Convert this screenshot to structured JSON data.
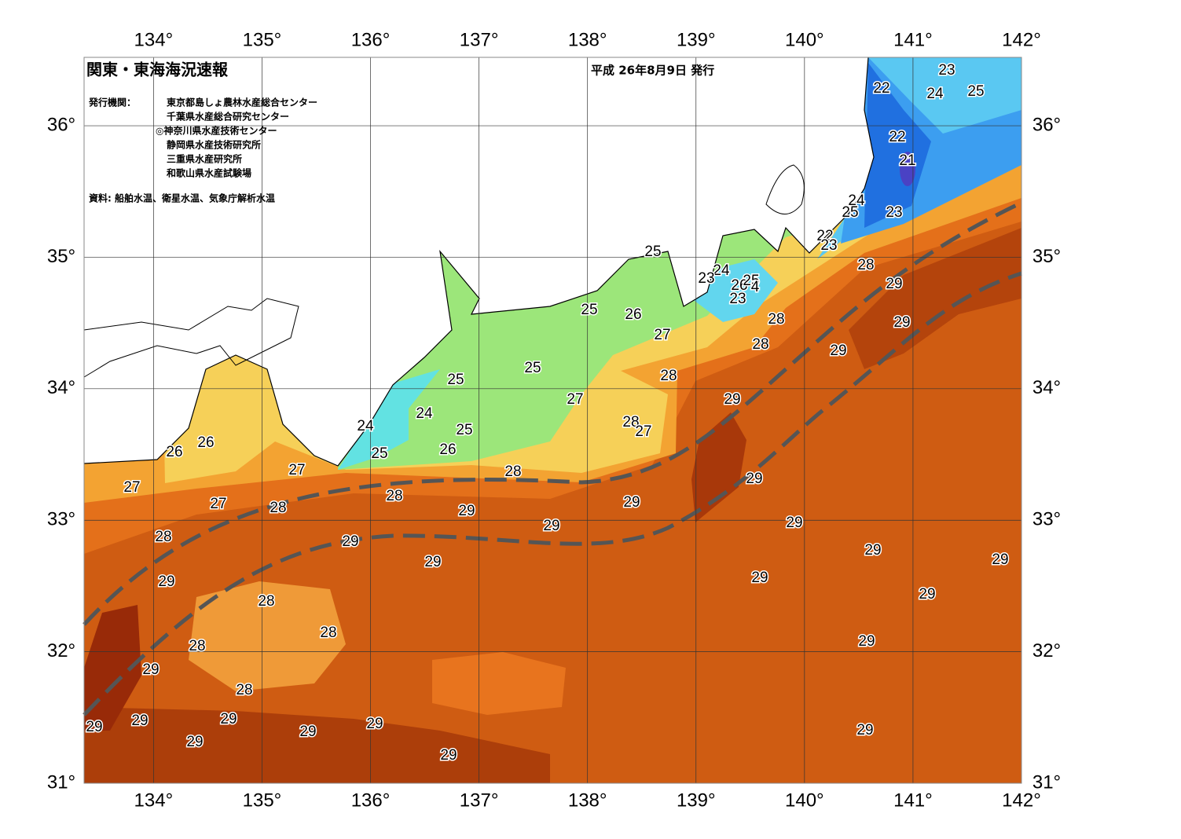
{
  "header": {
    "title": "関東・東海海況速報",
    "issue_date": "平成 26年8月9日 発行",
    "issuers_label": "発行機関：",
    "issuers": [
      "東京都島しょ農林水産総合センター",
      "千葉県水産総合研究センター",
      "◎神奈川県水産技術センター",
      "静岡県水産技術研究所",
      "三重県水産研究所",
      "和歌山県水産試験場"
    ],
    "source": "資料: 船舶水温、衛星水温、気象庁解析水温"
  },
  "map": {
    "lon_lim": [
      133.36,
      142
    ],
    "lat_lim": [
      31,
      36.52
    ],
    "lon_ticks": [
      {
        "value": 134,
        "label": "134°"
      },
      {
        "value": 135,
        "label": "135°"
      },
      {
        "value": 136,
        "label": "136°"
      },
      {
        "value": 137,
        "label": "137°"
      },
      {
        "value": 138,
        "label": "138°"
      },
      {
        "value": 139,
        "label": "139°"
      },
      {
        "value": 140,
        "label": "140°"
      },
      {
        "value": 141,
        "label": "141°"
      },
      {
        "value": 142,
        "label": "142°"
      }
    ],
    "lat_ticks": [
      {
        "value": 31,
        "label": "31°"
      },
      {
        "value": 32,
        "label": "32°"
      },
      {
        "value": 33,
        "label": "33°"
      },
      {
        "value": 34,
        "label": "34°"
      },
      {
        "value": 35,
        "label": "35°"
      },
      {
        "value": 36,
        "label": "36°"
      }
    ],
    "contour_labels": [
      23,
      22,
      24,
      25,
      22,
      21,
      24,
      25,
      23,
      22,
      23,
      25,
      28,
      24,
      23,
      26,
      25,
      4,
      23,
      29,
      25,
      26,
      28,
      29,
      27,
      28,
      29,
      25,
      28,
      25,
      29,
      27,
      24,
      28,
      27,
      24,
      25,
      26,
      26,
      26,
      25,
      27,
      28,
      29,
      27,
      28,
      27,
      28,
      29,
      29,
      29,
      29,
      28,
      29,
      29,
      29,
      29,
      29,
      29,
      28,
      29,
      28,
      28,
      29,
      29,
      28,
      29,
      29,
      29,
      29,
      29,
      29,
      29,
      29
    ]
  }
}
